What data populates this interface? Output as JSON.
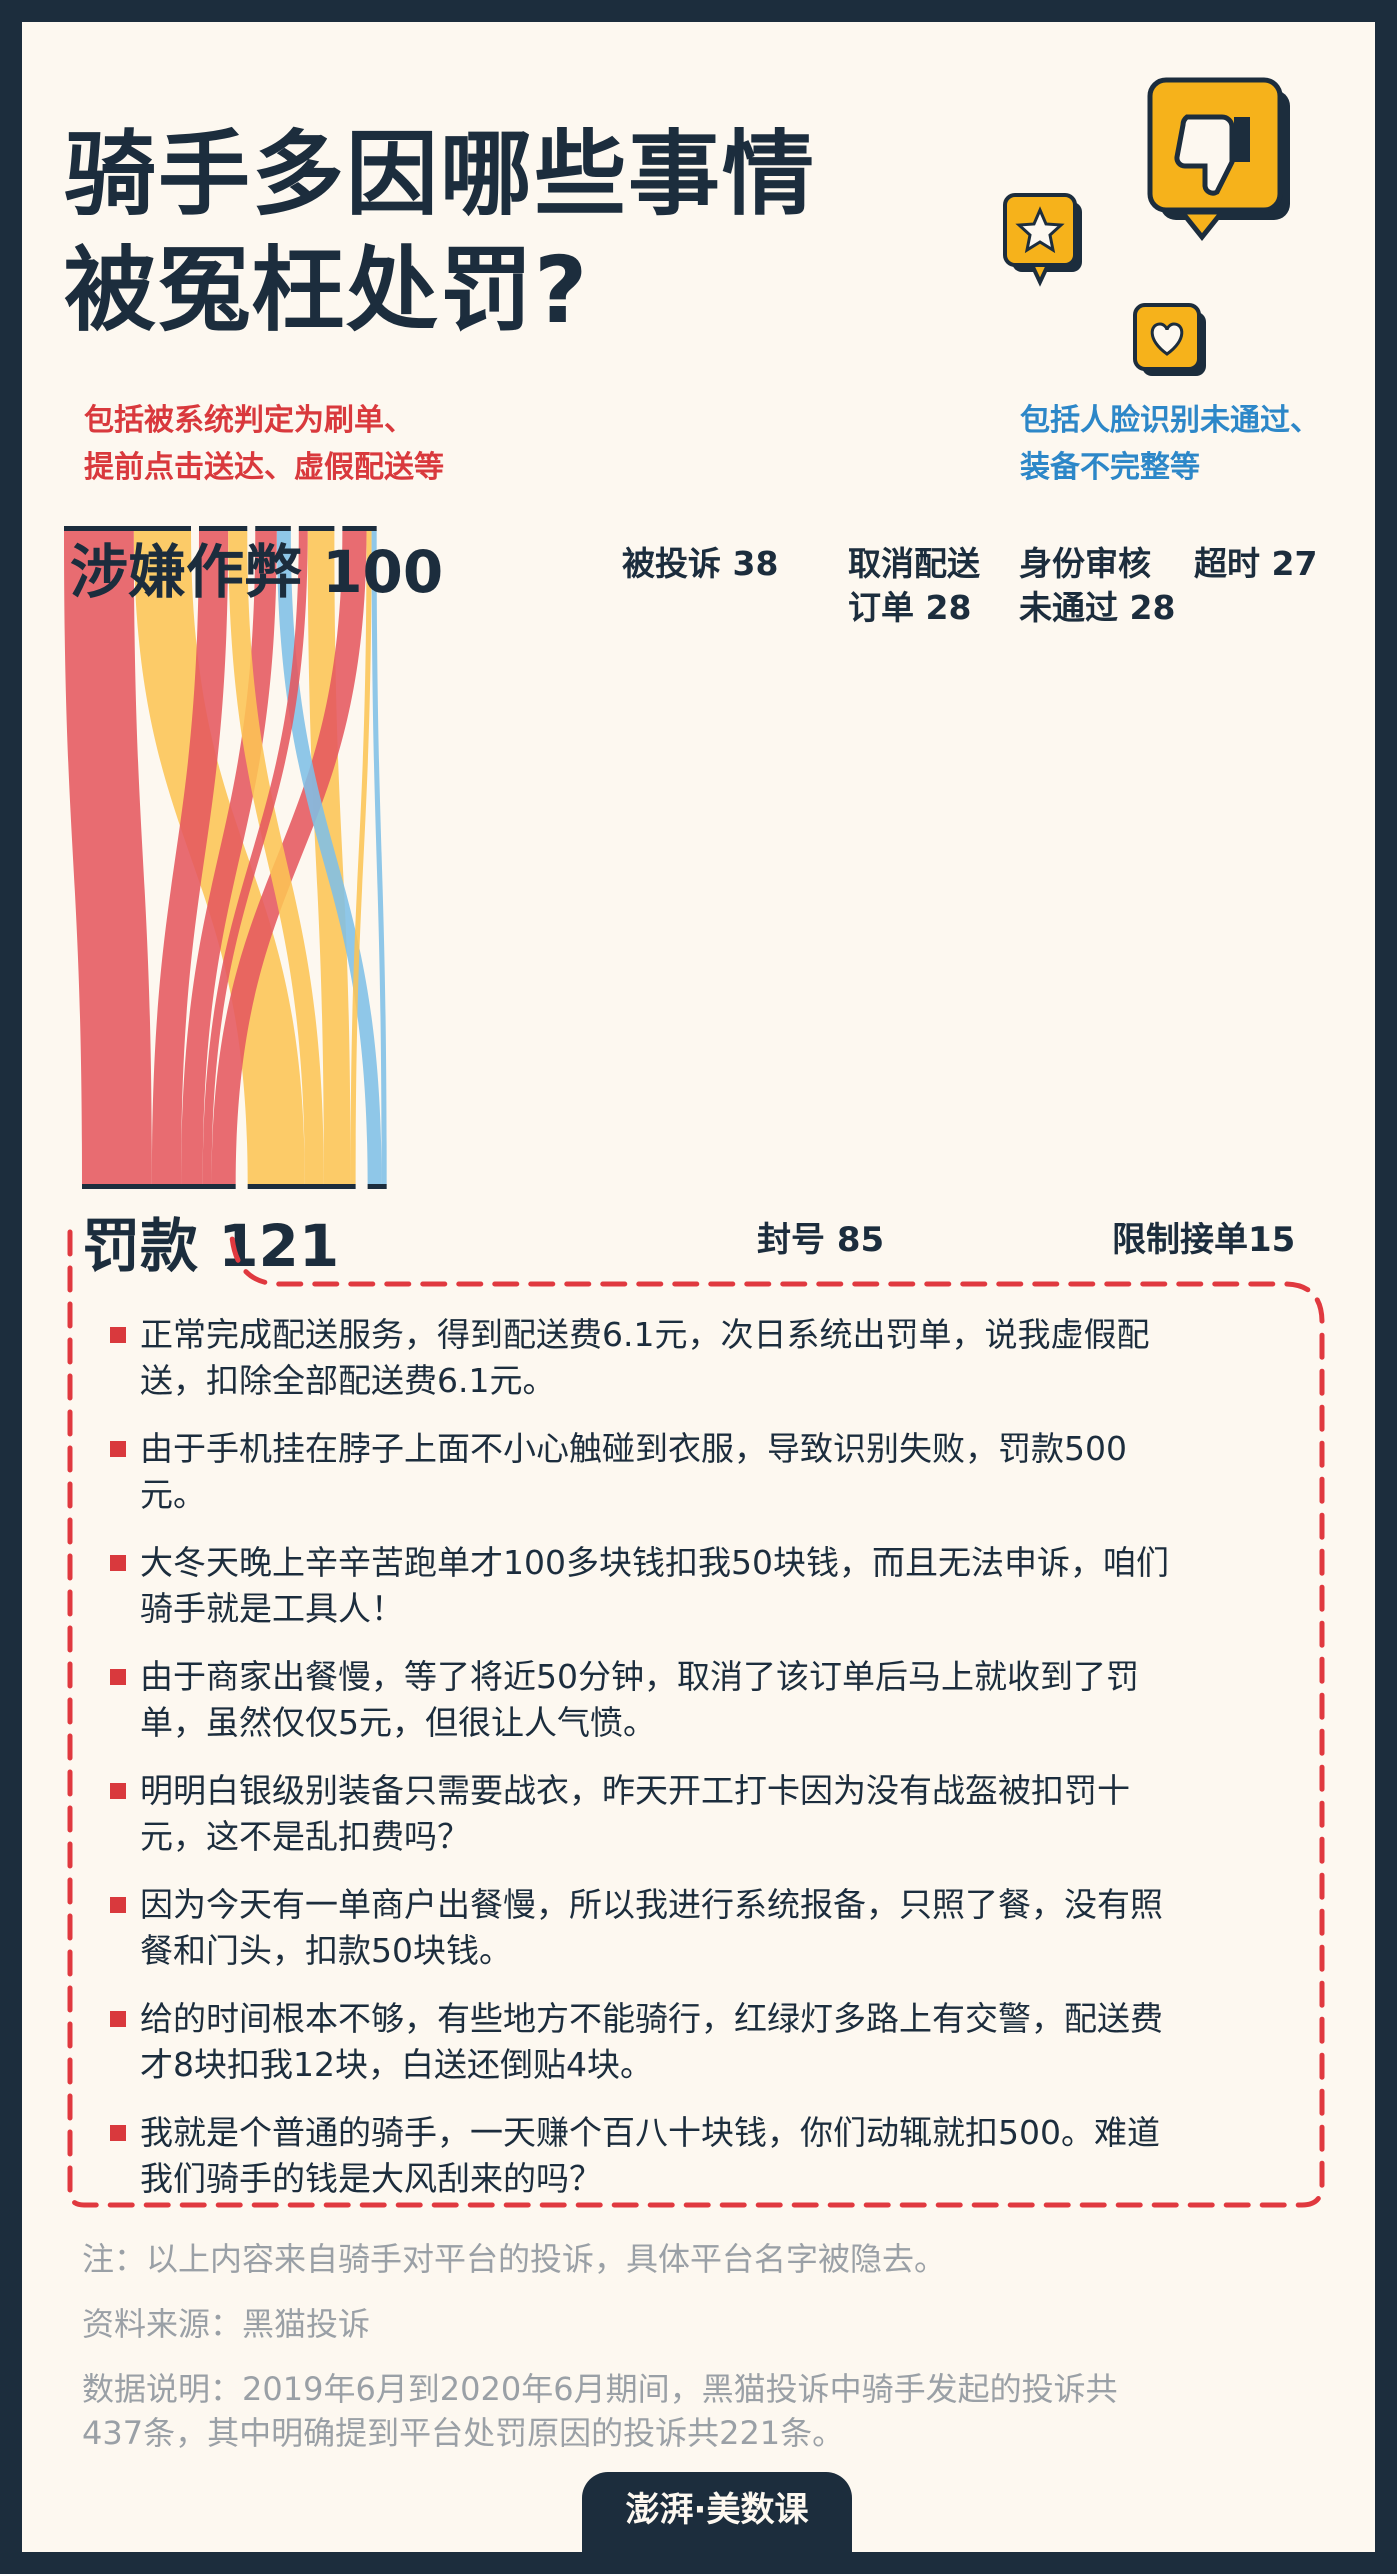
{
  "title": [
    "骑手多因哪些事情",
    "被冤枉处罚?"
  ],
  "notes": {
    "left": [
      "包括被系统判定为刷单、",
      "提前点击送达、虚假配送等"
    ],
    "right": [
      "包括人脸识别未通过、",
      "装备不完整等"
    ]
  },
  "chart_data": {
    "type": "sankey",
    "sources": [
      {
        "name": "涉嫌作弊",
        "value": 100,
        "label": "涉嫌作弊 100"
      },
      {
        "name": "被投诉",
        "value": 38,
        "label": "被投诉 38"
      },
      {
        "name": "取消配送订单",
        "value": 28,
        "label": [
          "取消配送",
          "订单 28"
        ]
      },
      {
        "name": "身份审核未通过",
        "value": 28,
        "label": [
          "身份审核",
          "未通过 28"
        ]
      },
      {
        "name": "超时",
        "value": 27,
        "label": "超时 27"
      }
    ],
    "targets": [
      {
        "name": "罚款",
        "value": 121,
        "label": "罚款 121"
      },
      {
        "name": "封号",
        "value": 85,
        "label": "封号 85"
      },
      {
        "name": "限制接单",
        "value": 15,
        "label": "限制接单15"
      }
    ],
    "flows": [
      {
        "source": "涉嫌作弊",
        "target": "罚款",
        "value": 55,
        "color": "#e5585e"
      },
      {
        "source": "涉嫌作弊",
        "target": "封号",
        "value": 45,
        "color": "#fcc454"
      },
      {
        "source": "被投诉",
        "target": "罚款",
        "value": 23,
        "color": "#e5585e"
      },
      {
        "source": "被投诉",
        "target": "封号",
        "value": 15,
        "color": "#fcc454"
      },
      {
        "source": "取消配送订单",
        "target": "罚款",
        "value": 17,
        "color": "#e5585e"
      },
      {
        "source": "取消配送订单",
        "target": "限制接单",
        "value": 11,
        "color": "#7fbfe6"
      },
      {
        "source": "身份审核未通过",
        "target": "罚款",
        "value": 7,
        "color": "#e5585e"
      },
      {
        "source": "身份审核未通过",
        "target": "封号",
        "value": 21,
        "color": "#fcc454"
      },
      {
        "source": "超时",
        "target": "罚款",
        "value": 19,
        "color": "#e5585e"
      },
      {
        "source": "超时",
        "target": "封号",
        "value": 4,
        "color": "#fcc454"
      },
      {
        "source": "超时",
        "target": "限制接单",
        "value": 4,
        "color": "#7fbfe6"
      }
    ],
    "colors": {
      "fine": "#e5585e",
      "ban": "#fcc454",
      "limit": "#7fbfe6"
    }
  },
  "quotes": [
    [
      "正常完成配送服务，得到配送费6.1元，次日系统出罚单，说我虚假配",
      "送，扣除全部配送费6.1元。"
    ],
    [
      "由于手机挂在脖子上面不小心触碰到衣服，导致识别失败，罚款500",
      "元。"
    ],
    [
      "大冬天晚上辛辛苦跑单才100多块钱扣我50块钱，而且无法申诉，咱们",
      "骑手就是工具人！"
    ],
    [
      "由于商家出餐慢，等了将近50分钟，取消了该订单后马上就收到了罚",
      "单，虽然仅仅5元，但很让人气愤。"
    ],
    [
      "明明白银级别装备只需要战衣，昨天开工打卡因为没有战盔被扣罚十",
      "元，这不是乱扣费吗？"
    ],
    [
      "因为今天有一单商户出餐慢，所以我进行系统报备，只照了餐，没有照",
      "餐和门头，扣款50块钱。"
    ],
    [
      "给的时间根本不够，有些地方不能骑行，红绿灯多路上有交警，配送费",
      "才8块扣我12块，白送还倒贴4块。"
    ],
    [
      "我就是个普通的骑手，一天赚个百八十块钱，你们动辄就扣500。难道",
      "我们骑手的钱是大风刮来的吗？"
    ]
  ],
  "footer": {
    "note": "注：以上内容来自骑手对平台的投诉，具体平台名字被隐去。",
    "source": "资料来源：黑猫投诉",
    "explain": [
      "数据说明：2019年6月到2020年6月期间，黑猫投诉中骑手发起的投诉共",
      "437条，其中明确提到平台处罚原因的投诉共221条。"
    ]
  },
  "logo": "澎湃·美数课"
}
